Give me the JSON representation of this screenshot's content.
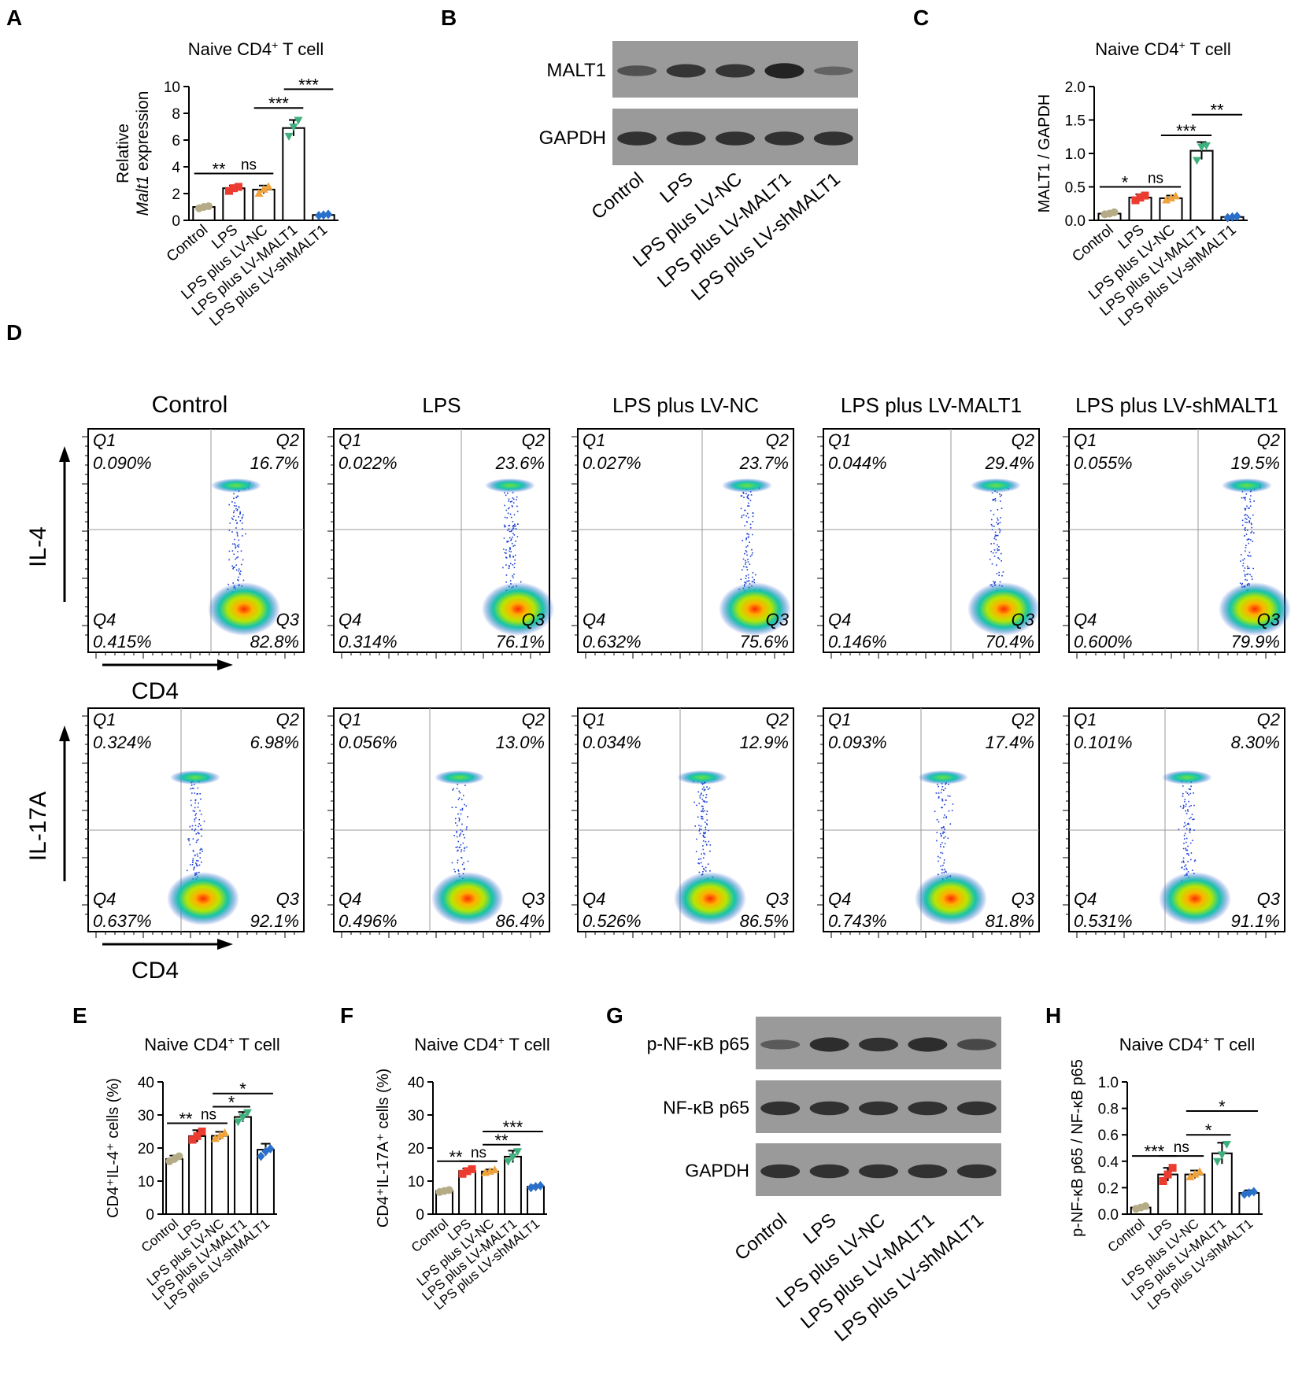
{
  "colors": {
    "control": "#b5ab87",
    "lps": "#ec3b2f",
    "lv_nc": "#f0a23b",
    "lv_malt1": "#3fb07d",
    "lv_shmalt1": "#2a6fc9",
    "line": "#000000",
    "blot_bg": "#9a9a9a",
    "band": "#1e1e1e"
  },
  "groups": [
    "Control",
    "LPS",
    "LPS plus LV-NC",
    "LPS plus LV-MALT1",
    "LPS plus LV-shMALT1"
  ],
  "panel_letters": {
    "A": "A",
    "B": "B",
    "C": "C",
    "D": "D",
    "E": "E",
    "F": "F",
    "G": "G",
    "H": "H"
  },
  "chart_data": [
    {
      "id": "A",
      "type": "bar",
      "title": "Naive CD4",
      "title_sup": "+",
      "title_rest": " T cell",
      "ylabel_line1": "Relative",
      "ylabel_line2_italic": "Malt1",
      "ylabel_line2_rest": " expression",
      "ylim": [
        0,
        10
      ],
      "yticks": [
        0,
        2,
        4,
        6,
        8,
        10
      ],
      "categories": [
        "Control",
        "LPS",
        "LPS plus LV-NC",
        "LPS plus LV-MALT1",
        "LPS plus LV-shMALT1"
      ],
      "values": [
        1.0,
        2.4,
        2.3,
        6.9,
        0.4
      ],
      "errors": [
        0.1,
        0.2,
        0.3,
        0.6,
        0.05
      ],
      "points": [
        [
          0.9,
          1.0,
          1.05
        ],
        [
          2.2,
          2.4,
          2.5
        ],
        [
          2.0,
          2.3,
          2.5
        ],
        [
          6.3,
          7.0,
          7.5
        ],
        [
          0.35,
          0.4,
          0.45
        ]
      ],
      "comparisons": [
        {
          "from": 0,
          "to": 1,
          "y": 3.5,
          "label": "**"
        },
        {
          "from": 1,
          "to": 2,
          "y": 3.5,
          "label": "ns"
        },
        {
          "from": 2,
          "to": 3,
          "y": 8.4,
          "label": "***"
        },
        {
          "from": 3,
          "to": 4,
          "y": 9.8,
          "label": "***"
        }
      ]
    },
    {
      "id": "C",
      "type": "bar",
      "title": "Naive CD4",
      "title_sup": "+",
      "title_rest": " T cell",
      "ylabel": "MALT1 / GAPDH",
      "ylim": [
        0,
        2.0
      ],
      "yticks": [
        0.0,
        0.5,
        1.0,
        1.5,
        2.0
      ],
      "ytick_labels": [
        "0.0",
        "0.5",
        "1.0",
        "1.5",
        "2.0"
      ],
      "categories": [
        "Control",
        "LPS",
        "LPS plus LV-NC",
        "LPS plus LV-MALT1",
        "LPS plus LV-shMALT1"
      ],
      "values": [
        0.1,
        0.34,
        0.33,
        1.04,
        0.05
      ],
      "errors": [
        0.02,
        0.05,
        0.04,
        0.13,
        0.01
      ],
      "points": [
        [
          0.09,
          0.1,
          0.12
        ],
        [
          0.3,
          0.34,
          0.37
        ],
        [
          0.3,
          0.33,
          0.36
        ],
        [
          0.9,
          1.1,
          1.12
        ],
        [
          0.04,
          0.05,
          0.06
        ]
      ],
      "comparisons": [
        {
          "from": 0,
          "to": 1,
          "y": 0.5,
          "label": "*"
        },
        {
          "from": 1,
          "to": 2,
          "y": 0.5,
          "label": "ns"
        },
        {
          "from": 2,
          "to": 3,
          "y": 1.27,
          "label": "***"
        },
        {
          "from": 3,
          "to": 4,
          "y": 1.58,
          "label": "**"
        }
      ]
    },
    {
      "id": "E",
      "type": "bar",
      "title": "Naive CD4",
      "title_sup": "+",
      "title_rest": " T cell",
      "ylabel": "CD4⁺IL-4⁺ cells (%)",
      "ylim": [
        0,
        40
      ],
      "yticks": [
        0,
        10,
        20,
        30,
        40
      ],
      "categories": [
        "Control",
        "LPS",
        "LPS plus LV-NC",
        "LPS plus LV-MALT1",
        "LPS plus LV-shMALT1"
      ],
      "values": [
        16.7,
        23.6,
        23.7,
        29.4,
        19.5
      ],
      "errors": [
        1.0,
        1.8,
        1.2,
        1.5,
        1.8
      ],
      "points": [
        [
          16.0,
          16.7,
          17.5
        ],
        [
          22.5,
          23.6,
          25.0
        ],
        [
          22.8,
          23.7,
          24.5
        ],
        [
          28.0,
          29.4,
          30.8
        ],
        [
          17.5,
          19.0,
          19.8
        ]
      ],
      "comparisons": [
        {
          "from": 0,
          "to": 1,
          "y": 27.5,
          "label": "**"
        },
        {
          "from": 1,
          "to": 2,
          "y": 27.5,
          "label": "ns"
        },
        {
          "from": 2,
          "to": 3,
          "y": 32.5,
          "label": "*"
        },
        {
          "from": 2,
          "to": 4,
          "y": 36.5,
          "label": "*"
        }
      ]
    },
    {
      "id": "F",
      "type": "bar",
      "title": "Naive CD4",
      "title_sup": "+",
      "title_rest": " T cell",
      "ylabel": "CD4⁺IL-17A⁺ cells (%)",
      "ylim": [
        0,
        40
      ],
      "yticks": [
        0,
        10,
        20,
        30,
        40
      ],
      "categories": [
        "Control",
        "LPS",
        "LPS plus LV-NC",
        "LPS plus LV-MALT1",
        "LPS plus LV-shMALT1"
      ],
      "values": [
        7.0,
        13.0,
        12.9,
        17.4,
        8.3
      ],
      "errors": [
        0.4,
        0.8,
        0.6,
        1.8,
        0.4
      ],
      "points": [
        [
          6.7,
          7.0,
          7.3
        ],
        [
          12.2,
          13.0,
          13.6
        ],
        [
          12.5,
          12.9,
          13.3
        ],
        [
          16.0,
          17.4,
          19.0
        ],
        [
          8.0,
          8.3,
          8.6
        ]
      ],
      "comparisons": [
        {
          "from": 0,
          "to": 1,
          "y": 16.0,
          "label": "**"
        },
        {
          "from": 1,
          "to": 2,
          "y": 16.0,
          "label": "ns"
        },
        {
          "from": 2,
          "to": 3,
          "y": 21.0,
          "label": "**"
        },
        {
          "from": 2,
          "to": 4,
          "y": 25.0,
          "label": "***"
        }
      ]
    },
    {
      "id": "H",
      "type": "bar",
      "title": "Naive CD4",
      "title_sup": "+",
      "title_rest": " T cell",
      "ylabel": "p-NF-κB p65 / NF-κB p65",
      "ylim": [
        0,
        1.0
      ],
      "yticks": [
        0.0,
        0.2,
        0.4,
        0.6,
        0.8,
        1.0
      ],
      "ytick_labels": [
        "0.0",
        "0.2",
        "0.4",
        "0.6",
        "0.8",
        "1.0"
      ],
      "categories": [
        "Control",
        "LPS",
        "LPS plus LV-NC",
        "LPS plus LV-MALT1",
        "LPS plus LV-shMALT1"
      ],
      "values": [
        0.05,
        0.3,
        0.3,
        0.46,
        0.16
      ],
      "errors": [
        0.01,
        0.05,
        0.03,
        0.08,
        0.02
      ],
      "points": [
        [
          0.04,
          0.05,
          0.06
        ],
        [
          0.25,
          0.3,
          0.35
        ],
        [
          0.28,
          0.3,
          0.32
        ],
        [
          0.4,
          0.45,
          0.53
        ],
        [
          0.15,
          0.16,
          0.17
        ]
      ],
      "comparisons": [
        {
          "from": 0,
          "to": 1,
          "y": 0.44,
          "label": "***"
        },
        {
          "from": 1,
          "to": 2,
          "y": 0.44,
          "label": "ns"
        },
        {
          "from": 2,
          "to": 3,
          "y": 0.6,
          "label": "*"
        },
        {
          "from": 2,
          "to": 4,
          "y": 0.78,
          "label": "*"
        }
      ]
    }
  ],
  "blots": {
    "B": {
      "rows": [
        {
          "label": "MALT1",
          "intensities": [
            0.45,
            0.75,
            0.75,
            0.95,
            0.25
          ]
        },
        {
          "label": "GAPDH",
          "intensities": [
            0.8,
            0.8,
            0.8,
            0.8,
            0.8
          ]
        }
      ],
      "lane_labels": [
        "Control",
        "LPS",
        "LPS plus LV-NC",
        "LPS plus LV-MALT1",
        "LPS plus LV-shMALT1"
      ]
    },
    "G": {
      "rows": [
        {
          "label": "p-NF-κB p65",
          "intensities": [
            0.35,
            0.85,
            0.8,
            0.85,
            0.55
          ]
        },
        {
          "label": "NF-κB p65",
          "intensities": [
            0.8,
            0.8,
            0.8,
            0.8,
            0.8
          ]
        },
        {
          "label": "GAPDH",
          "intensities": [
            0.8,
            0.8,
            0.8,
            0.8,
            0.8
          ]
        }
      ],
      "lane_labels": [
        "Control",
        "LPS",
        "LPS plus LV-NC",
        "LPS plus LV-MALT1",
        "LPS plus LV-shMALT1"
      ]
    }
  },
  "flow": {
    "column_titles": [
      "Control",
      "LPS",
      "LPS plus LV-NC",
      "LPS plus LV-MALT1",
      "LPS plus LV-shMALT1"
    ],
    "rows": [
      {
        "ylabel": "IL-4",
        "xlabel": "CD4",
        "plots": [
          {
            "q1": "0.090%",
            "q2": "16.7%",
            "q3": "82.8%",
            "q4": "0.415%"
          },
          {
            "q1": "0.022%",
            "q2": "23.6%",
            "q3": "76.1%",
            "q4": "0.314%"
          },
          {
            "q1": "0.027%",
            "q2": "23.7%",
            "q3": "75.6%",
            "q4": "0.632%"
          },
          {
            "q1": "0.044%",
            "q2": "29.4%",
            "q3": "70.4%",
            "q4": "0.146%"
          },
          {
            "q1": "0.055%",
            "q2": "19.5%",
            "q3": "79.9%",
            "q4": "0.600%"
          }
        ]
      },
      {
        "ylabel": "IL-17A",
        "xlabel": "CD4",
        "plots": [
          {
            "q1": "0.324%",
            "q2": "6.98%",
            "q3": "92.1%",
            "q4": "0.637%"
          },
          {
            "q1": "0.056%",
            "q2": "13.0%",
            "q3": "86.4%",
            "q4": "0.496%"
          },
          {
            "q1": "0.034%",
            "q2": "12.9%",
            "q3": "86.5%",
            "q4": "0.526%"
          },
          {
            "q1": "0.093%",
            "q2": "17.4%",
            "q3": "81.8%",
            "q4": "0.743%"
          },
          {
            "q1": "0.101%",
            "q2": "8.30%",
            "q3": "91.1%",
            "q4": "0.531%"
          }
        ]
      }
    ],
    "quadrant_names": {
      "q1": "Q1",
      "q2": "Q2",
      "q3": "Q3",
      "q4": "Q4"
    }
  }
}
